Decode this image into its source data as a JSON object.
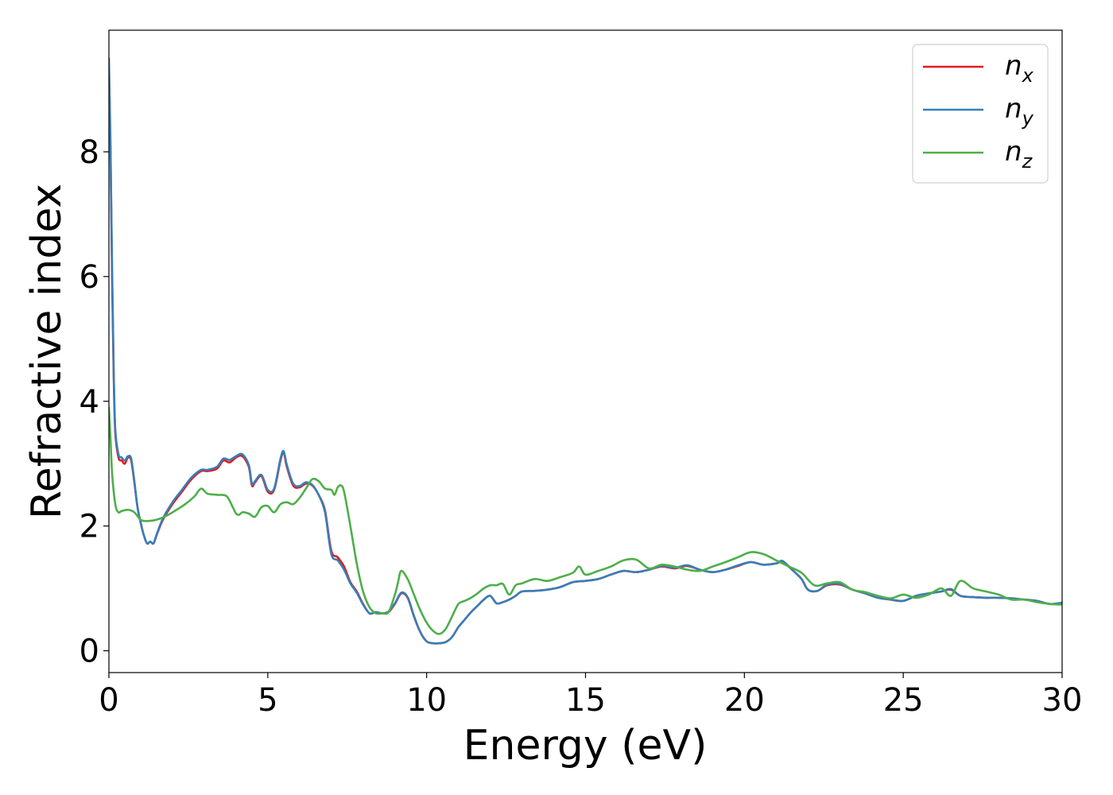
{
  "chart_data": {
    "type": "line",
    "xlabel": "Energy (eV)",
    "ylabel": "Refractive index",
    "xlim": [
      0,
      30
    ],
    "ylim": [
      -0.35,
      9.95
    ],
    "xticks": [
      "0",
      "5",
      "10",
      "15",
      "20",
      "25",
      "30"
    ],
    "yticks": [
      "0",
      "2",
      "4",
      "6",
      "8"
    ],
    "grid": false,
    "legend_position": "top-right",
    "series": [
      {
        "name": "n",
        "subscript": "x",
        "color": "#e41a1c",
        "x": [
          0,
          0.05,
          0.1,
          0.15,
          0.2,
          0.3,
          0.4,
          0.5,
          0.6,
          0.7,
          0.8,
          0.9,
          1.0,
          1.1,
          1.2,
          1.3,
          1.4,
          1.5,
          1.7,
          2.0,
          2.3,
          2.6,
          2.9,
          3.1,
          3.4,
          3.6,
          3.8,
          4.0,
          4.2,
          4.4,
          4.5,
          4.6,
          4.8,
          5.0,
          5.2,
          5.4,
          5.5,
          5.6,
          5.8,
          6.0,
          6.2,
          6.4,
          6.6,
          6.8,
          7.0,
          7.2,
          7.4,
          7.6,
          7.8,
          8.0,
          8.2,
          8.4,
          8.6,
          8.8,
          9.0,
          9.2,
          9.4,
          9.6,
          9.8,
          10.0,
          10.2,
          10.4,
          10.6,
          10.8,
          11.0,
          11.2,
          11.4,
          11.6,
          11.8,
          12.0,
          12.2,
          12.4,
          12.6,
          12.8,
          13.0,
          13.4,
          13.8,
          14.2,
          14.6,
          15.0,
          15.4,
          15.8,
          16.2,
          16.6,
          17.0,
          17.4,
          17.8,
          18.2,
          18.6,
          19.0,
          19.4,
          19.8,
          20.2,
          20.6,
          21.0,
          21.2,
          21.5,
          21.8,
          22.0,
          22.3,
          22.6,
          23.0,
          23.4,
          23.8,
          24.2,
          24.6,
          25.0,
          25.4,
          25.8,
          26.2,
          26.5,
          26.8,
          27.2,
          27.6,
          28.0,
          28.4,
          28.8,
          29.2,
          29.6,
          30.0
        ],
        "y": [
          9.4,
          8.0,
          6.0,
          4.4,
          3.5,
          3.1,
          3.05,
          3.0,
          3.1,
          3.05,
          2.7,
          2.3,
          2.05,
          1.85,
          1.72,
          1.75,
          1.72,
          1.85,
          2.1,
          2.35,
          2.55,
          2.75,
          2.88,
          2.88,
          2.92,
          3.05,
          3.02,
          3.1,
          3.12,
          2.95,
          2.65,
          2.7,
          2.8,
          2.55,
          2.58,
          3.05,
          3.18,
          2.95,
          2.65,
          2.62,
          2.68,
          2.65,
          2.5,
          2.25,
          1.6,
          1.5,
          1.35,
          1.1,
          0.95,
          0.75,
          0.6,
          0.62,
          0.6,
          0.62,
          0.75,
          0.92,
          0.85,
          0.55,
          0.3,
          0.15,
          0.12,
          0.12,
          0.14,
          0.22,
          0.38,
          0.5,
          0.62,
          0.72,
          0.82,
          0.88,
          0.76,
          0.78,
          0.82,
          0.88,
          0.95,
          0.96,
          0.98,
          1.02,
          1.1,
          1.12,
          1.15,
          1.22,
          1.28,
          1.26,
          1.3,
          1.35,
          1.32,
          1.36,
          1.3,
          1.26,
          1.3,
          1.36,
          1.42,
          1.38,
          1.4,
          1.42,
          1.3,
          1.15,
          0.98,
          0.96,
          1.05,
          1.06,
          0.98,
          0.92,
          0.85,
          0.82,
          0.8,
          0.88,
          0.92,
          0.95,
          0.98,
          0.88,
          0.86,
          0.85,
          0.85,
          0.84,
          0.82,
          0.8,
          0.75,
          0.76
        ]
      },
      {
        "name": "n",
        "subscript": "y",
        "color": "#377eb8",
        "x": [
          0,
          0.05,
          0.1,
          0.15,
          0.2,
          0.3,
          0.4,
          0.5,
          0.6,
          0.7,
          0.8,
          0.9,
          1.0,
          1.1,
          1.2,
          1.3,
          1.4,
          1.5,
          1.7,
          2.0,
          2.3,
          2.6,
          2.9,
          3.1,
          3.4,
          3.6,
          3.8,
          4.0,
          4.2,
          4.4,
          4.5,
          4.6,
          4.8,
          5.0,
          5.2,
          5.4,
          5.5,
          5.6,
          5.8,
          6.0,
          6.2,
          6.4,
          6.6,
          6.8,
          7.0,
          7.2,
          7.4,
          7.6,
          7.8,
          8.0,
          8.2,
          8.4,
          8.6,
          8.8,
          9.0,
          9.2,
          9.4,
          9.6,
          9.8,
          10.0,
          10.2,
          10.4,
          10.6,
          10.8,
          11.0,
          11.2,
          11.4,
          11.6,
          11.8,
          12.0,
          12.2,
          12.4,
          12.6,
          12.8,
          13.0,
          13.4,
          13.8,
          14.2,
          14.6,
          15.0,
          15.4,
          15.8,
          16.2,
          16.6,
          17.0,
          17.4,
          17.8,
          18.2,
          18.6,
          19.0,
          19.4,
          19.8,
          20.2,
          20.6,
          21.0,
          21.2,
          21.5,
          21.8,
          22.0,
          22.3,
          22.6,
          23.0,
          23.4,
          23.8,
          24.2,
          24.6,
          25.0,
          25.4,
          25.8,
          26.2,
          26.5,
          26.8,
          27.2,
          27.6,
          28.0,
          28.4,
          28.8,
          29.2,
          29.6,
          30.0
        ],
        "y": [
          9.5,
          8.1,
          6.1,
          4.5,
          3.55,
          3.15,
          3.1,
          3.05,
          3.12,
          3.08,
          2.72,
          2.3,
          2.05,
          1.85,
          1.72,
          1.75,
          1.72,
          1.86,
          2.12,
          2.38,
          2.58,
          2.78,
          2.9,
          2.9,
          2.95,
          3.08,
          3.06,
          3.12,
          3.15,
          2.98,
          2.68,
          2.72,
          2.82,
          2.58,
          2.6,
          3.08,
          3.2,
          2.98,
          2.68,
          2.64,
          2.7,
          2.66,
          2.5,
          2.22,
          1.55,
          1.45,
          1.3,
          1.08,
          0.93,
          0.74,
          0.6,
          0.62,
          0.6,
          0.63,
          0.76,
          0.93,
          0.86,
          0.56,
          0.3,
          0.15,
          0.12,
          0.12,
          0.14,
          0.22,
          0.38,
          0.5,
          0.62,
          0.72,
          0.82,
          0.88,
          0.76,
          0.78,
          0.82,
          0.88,
          0.95,
          0.96,
          0.98,
          1.02,
          1.1,
          1.12,
          1.15,
          1.22,
          1.28,
          1.26,
          1.3,
          1.36,
          1.33,
          1.37,
          1.3,
          1.26,
          1.3,
          1.37,
          1.42,
          1.38,
          1.4,
          1.44,
          1.3,
          1.15,
          0.98,
          0.96,
          1.06,
          1.07,
          0.98,
          0.92,
          0.85,
          0.82,
          0.8,
          0.88,
          0.92,
          0.95,
          0.99,
          0.88,
          0.86,
          0.85,
          0.85,
          0.84,
          0.82,
          0.8,
          0.75,
          0.77
        ]
      },
      {
        "name": "n",
        "subscript": "z",
        "color": "#4daf4a",
        "x": [
          0,
          0.05,
          0.1,
          0.2,
          0.3,
          0.4,
          0.6,
          0.8,
          1.0,
          1.2,
          1.5,
          1.8,
          2.1,
          2.4,
          2.7,
          2.9,
          3.1,
          3.4,
          3.7,
          3.9,
          4.0,
          4.1,
          4.2,
          4.4,
          4.6,
          4.8,
          5.0,
          5.2,
          5.4,
          5.6,
          5.8,
          6.0,
          6.2,
          6.4,
          6.6,
          6.8,
          7.0,
          7.1,
          7.2,
          7.3,
          7.4,
          7.6,
          7.8,
          8.0,
          8.2,
          8.4,
          8.6,
          8.8,
          9.0,
          9.1,
          9.2,
          9.4,
          9.6,
          9.8,
          10.0,
          10.2,
          10.4,
          10.6,
          10.8,
          11.0,
          11.2,
          11.4,
          11.6,
          11.8,
          12.0,
          12.2,
          12.4,
          12.6,
          12.8,
          13.0,
          13.4,
          13.8,
          14.2,
          14.6,
          14.8,
          15.0,
          15.4,
          15.8,
          16.2,
          16.6,
          17.0,
          17.4,
          17.8,
          18.2,
          18.6,
          19.0,
          19.4,
          19.8,
          20.2,
          20.6,
          21.0,
          21.4,
          21.8,
          22.2,
          22.6,
          23.0,
          23.4,
          23.8,
          24.2,
          24.6,
          25.0,
          25.4,
          25.8,
          26.2,
          26.5,
          26.8,
          27.2,
          27.6,
          28.0,
          28.4,
          28.8,
          29.2,
          29.6,
          30.0
        ],
        "y": [
          3.9,
          3.4,
          2.85,
          2.35,
          2.22,
          2.24,
          2.26,
          2.22,
          2.1,
          2.08,
          2.1,
          2.16,
          2.25,
          2.35,
          2.48,
          2.6,
          2.52,
          2.5,
          2.48,
          2.3,
          2.2,
          2.18,
          2.22,
          2.2,
          2.15,
          2.3,
          2.32,
          2.22,
          2.35,
          2.38,
          2.35,
          2.45,
          2.6,
          2.75,
          2.72,
          2.6,
          2.58,
          2.5,
          2.62,
          2.65,
          2.55,
          2.0,
          1.4,
          0.95,
          0.7,
          0.6,
          0.6,
          0.62,
          0.9,
          1.1,
          1.28,
          1.15,
          0.9,
          0.65,
          0.45,
          0.32,
          0.27,
          0.35,
          0.55,
          0.75,
          0.8,
          0.85,
          0.92,
          1.0,
          1.05,
          1.05,
          1.07,
          0.9,
          1.05,
          1.08,
          1.15,
          1.12,
          1.18,
          1.25,
          1.35,
          1.22,
          1.28,
          1.35,
          1.45,
          1.46,
          1.32,
          1.38,
          1.35,
          1.3,
          1.28,
          1.35,
          1.42,
          1.5,
          1.58,
          1.55,
          1.45,
          1.35,
          1.25,
          1.05,
          1.08,
          1.1,
          0.98,
          0.94,
          0.88,
          0.84,
          0.9,
          0.85,
          0.9,
          1.0,
          0.88,
          1.12,
          1.0,
          0.95,
          0.9,
          0.82,
          0.82,
          0.78,
          0.75,
          0.74
        ]
      }
    ]
  }
}
